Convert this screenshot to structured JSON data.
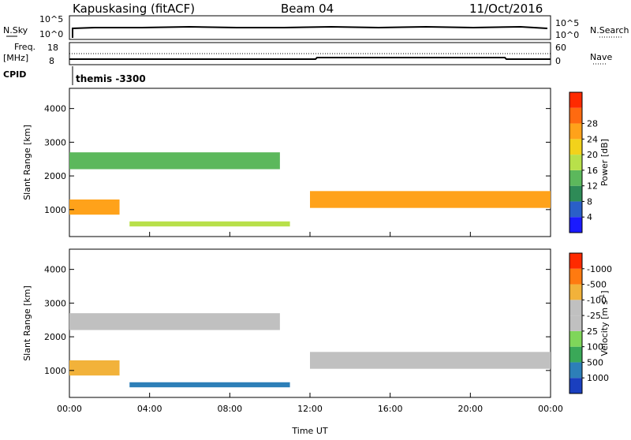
{
  "header": {
    "station": "Kapuskasing (fitACF)",
    "beam": "Beam 04",
    "date": "11/Oct/2016"
  },
  "top_panels": {
    "nsky_label": "N.Sky",
    "nsearch_label": "N.Search",
    "freq_label_1": "Freq.",
    "freq_label_2": "[MHz]",
    "nave_label": "Nave",
    "cpid_label": "CPID",
    "cpid_text": "themis -3300",
    "noise_left_ticks": [
      "10^5",
      "10^0"
    ],
    "noise_right_ticks": [
      "10^5",
      "10^0"
    ],
    "freq_left_ticks": [
      "18",
      "8"
    ],
    "freq_right_ticks": [
      "60",
      "0"
    ]
  },
  "chart_data": [
    {
      "type": "heatmap",
      "title": "",
      "xlabel": "Time UT",
      "ylabel": "Slant Range [km]",
      "x_ticks": [
        "00:00",
        "04:00",
        "08:00",
        "12:00",
        "16:00",
        "20:00",
        "00:00"
      ],
      "y_ticks": [
        1000,
        2000,
        3000,
        4000
      ],
      "ylim": [
        200,
        4600
      ],
      "colorbar": {
        "label": "Power [dB]",
        "ticks": [
          4,
          8,
          12,
          16,
          20,
          24,
          28
        ],
        "colors": [
          "#1a1aff",
          "#2a5fc8",
          "#2e8b57",
          "#5cb85c",
          "#b8e04a",
          "#f2d21b",
          "#ffa21a",
          "#ff6a10",
          "#ff2a00"
        ]
      },
      "bands": [
        {
          "t": [
            0,
            2.5
          ],
          "r": [
            850,
            1300
          ],
          "value": 24
        },
        {
          "t": [
            0,
            10.5
          ],
          "r": [
            2200,
            2700
          ],
          "value": 12
        },
        {
          "t": [
            3,
            11
          ],
          "r": [
            500,
            650
          ],
          "value": 18
        },
        {
          "t": [
            12,
            24
          ],
          "r": [
            1050,
            1550
          ],
          "value": 26
        }
      ]
    },
    {
      "type": "heatmap",
      "title": "",
      "xlabel": "Time UT",
      "ylabel": "Slant Range [km]",
      "x_ticks": [
        "00:00",
        "04:00",
        "08:00",
        "12:00",
        "16:00",
        "20:00",
        "00:00"
      ],
      "y_ticks": [
        1000,
        2000,
        3000,
        4000
      ],
      "ylim": [
        200,
        4600
      ],
      "colorbar": {
        "label": "Velocity [m s^-1]",
        "ticks": [
          1000,
          500,
          100,
          25,
          -25,
          -100,
          -500,
          -1000
        ],
        "colors": [
          "#1a3fbf",
          "#2d7fb8",
          "#3aa858",
          "#7fd65a",
          "#c0c0c0",
          "#c0c0c0",
          "#f2b23a",
          "#ff7a10",
          "#ff2a00"
        ]
      },
      "bands": [
        {
          "t": [
            0,
            2.5
          ],
          "r": [
            850,
            1300
          ],
          "value": -100
        },
        {
          "t": [
            0,
            10.5
          ],
          "r": [
            2200,
            2700
          ],
          "value": 0
        },
        {
          "t": [
            3,
            11
          ],
          "r": [
            500,
            650
          ],
          "value": 100
        },
        {
          "t": [
            12,
            24
          ],
          "r": [
            1050,
            1550
          ],
          "value": 0
        }
      ]
    }
  ],
  "x_axis_label": "Time UT"
}
